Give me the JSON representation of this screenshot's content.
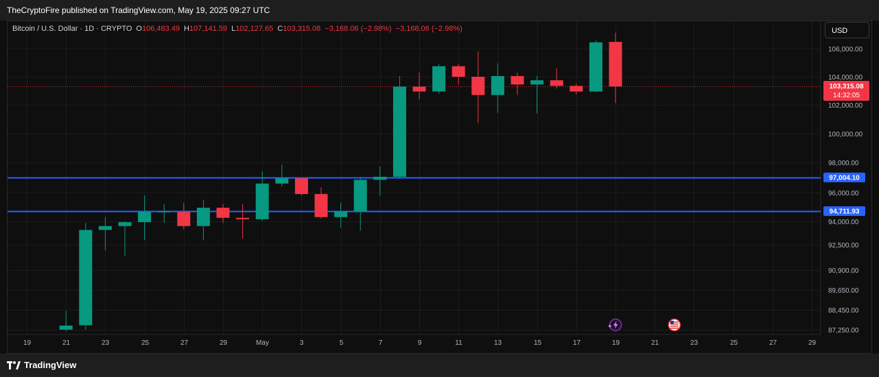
{
  "header": {
    "published": "TheCryptoFire published on TradingView.com, May 19, 2025 09:27 UTC"
  },
  "legend": {
    "symbol": "Bitcoin / U.S. Dollar · 1D · CRYPTO",
    "open_label": "O",
    "open": "106,483.49",
    "high_label": "H",
    "high": "107,141.59",
    "low_label": "L",
    "low": "102,127.65",
    "close_label": "C",
    "close": "103,315.08",
    "change": "−3,168.06 (−2.98%)",
    "change2": "−3,168.06 (−2.98%)"
  },
  "currency_button": "USD",
  "footer": {
    "brand": "TradingView"
  },
  "colors": {
    "up": "#089981",
    "down": "#f23645",
    "level_line": "#2962ff",
    "background": "#0f0f0f",
    "grid": "#1c1c1c"
  },
  "chart_data": {
    "type": "candlestick",
    "title": "Bitcoin / U.S. Dollar · 1D · CRYPTO",
    "grid": true,
    "price_axis": "right",
    "price_ticks": [
      {
        "label": "106,000.00",
        "value": 106000
      },
      {
        "label": "104,000.00",
        "value": 104000
      },
      {
        "label": "102,000.00",
        "value": 102000
      },
      {
        "label": "100,000.00",
        "value": 100000
      },
      {
        "label": "98,000.00",
        "value": 98000
      },
      {
        "label": "96,000.00",
        "value": 96000
      },
      {
        "label": "94,000.00",
        "value": 94000
      },
      {
        "label": "92,500.00",
        "value": 92500
      },
      {
        "label": "90,900.00",
        "value": 90900
      },
      {
        "label": "89,650.00",
        "value": 89650
      },
      {
        "label": "88,450.00",
        "value": 88450
      },
      {
        "label": "87,250.00",
        "value": 87250
      }
    ],
    "date_ticks": [
      {
        "label": "19",
        "date": "2025-04-19"
      },
      {
        "label": "21",
        "date": "2025-04-21"
      },
      {
        "label": "23",
        "date": "2025-04-23"
      },
      {
        "label": "25",
        "date": "2025-04-25"
      },
      {
        "label": "27",
        "date": "2025-04-27"
      },
      {
        "label": "29",
        "date": "2025-04-29"
      },
      {
        "label": "May",
        "date": "2025-05-01"
      },
      {
        "label": "3",
        "date": "2025-05-03"
      },
      {
        "label": "5",
        "date": "2025-05-05"
      },
      {
        "label": "7",
        "date": "2025-05-07"
      },
      {
        "label": "9",
        "date": "2025-05-09"
      },
      {
        "label": "11",
        "date": "2025-05-11"
      },
      {
        "label": "13",
        "date": "2025-05-13"
      },
      {
        "label": "15",
        "date": "2025-05-15"
      },
      {
        "label": "17",
        "date": "2025-05-17"
      },
      {
        "label": "19",
        "date": "2025-05-19"
      },
      {
        "label": "21",
        "date": "2025-05-21"
      },
      {
        "label": "23",
        "date": "2025-05-23"
      },
      {
        "label": "25",
        "date": "2025-05-25"
      },
      {
        "label": "27",
        "date": "2025-05-27"
      },
      {
        "label": "29",
        "date": "2025-05-29"
      }
    ],
    "candles": [
      {
        "date": "2025-04-21",
        "open": 87250,
        "high": 88400,
        "low": 87150,
        "close": 87500
      },
      {
        "date": "2025-04-22",
        "open": 87520,
        "high": 93900,
        "low": 87250,
        "close": 93450
      },
      {
        "date": "2025-04-23",
        "open": 93450,
        "high": 94300,
        "low": 92150,
        "close": 93700
      },
      {
        "date": "2025-04-24",
        "open": 93700,
        "high": 94000,
        "low": 91800,
        "close": 93950
      },
      {
        "date": "2025-04-25",
        "open": 93950,
        "high": 95800,
        "low": 92800,
        "close": 94650
      },
      {
        "date": "2025-04-26",
        "open": 94650,
        "high": 95200,
        "low": 93900,
        "close": 94700
      },
      {
        "date": "2025-04-27",
        "open": 94650,
        "high": 95300,
        "low": 93500,
        "close": 93700
      },
      {
        "date": "2025-04-28",
        "open": 93700,
        "high": 95500,
        "low": 92800,
        "close": 94950
      },
      {
        "date": "2025-04-29",
        "open": 94950,
        "high": 95200,
        "low": 93900,
        "close": 94250
      },
      {
        "date": "2025-04-30",
        "open": 94250,
        "high": 95200,
        "low": 92900,
        "close": 94150
      },
      {
        "date": "2025-05-01",
        "open": 94150,
        "high": 97400,
        "low": 94050,
        "close": 96600
      },
      {
        "date": "2025-05-02",
        "open": 96600,
        "high": 97850,
        "low": 96400,
        "close": 96950
      },
      {
        "date": "2025-05-03",
        "open": 96950,
        "high": 96950,
        "low": 95800,
        "close": 95900
      },
      {
        "date": "2025-05-04",
        "open": 95900,
        "high": 96350,
        "low": 94200,
        "close": 94300
      },
      {
        "date": "2025-05-05",
        "open": 94300,
        "high": 95300,
        "low": 93600,
        "close": 94700
      },
      {
        "date": "2025-05-06",
        "open": 94700,
        "high": 97050,
        "low": 93400,
        "close": 96850
      },
      {
        "date": "2025-05-07",
        "open": 96850,
        "high": 97750,
        "low": 95800,
        "close": 97050
      },
      {
        "date": "2025-05-08",
        "open": 97050,
        "high": 104050,
        "low": 96950,
        "close": 103300
      },
      {
        "date": "2025-05-09",
        "open": 103300,
        "high": 104300,
        "low": 102400,
        "close": 102950
      },
      {
        "date": "2025-05-10",
        "open": 102950,
        "high": 104900,
        "low": 102800,
        "close": 104750
      },
      {
        "date": "2025-05-11",
        "open": 104750,
        "high": 104900,
        "low": 103450,
        "close": 104000
      },
      {
        "date": "2025-05-12",
        "open": 104000,
        "high": 105800,
        "low": 100750,
        "close": 102700
      },
      {
        "date": "2025-05-13",
        "open": 102700,
        "high": 104950,
        "low": 101450,
        "close": 104050
      },
      {
        "date": "2025-05-14",
        "open": 104050,
        "high": 104300,
        "low": 102700,
        "close": 103450
      },
      {
        "date": "2025-05-15",
        "open": 103450,
        "high": 104050,
        "low": 101400,
        "close": 103750
      },
      {
        "date": "2025-05-16",
        "open": 103750,
        "high": 104600,
        "low": 103150,
        "close": 103350
      },
      {
        "date": "2025-05-17",
        "open": 103350,
        "high": 103500,
        "low": 102750,
        "close": 102950
      },
      {
        "date": "2025-05-18",
        "open": 102950,
        "high": 106600,
        "low": 102900,
        "close": 106450
      },
      {
        "date": "2025-05-19",
        "open": 106483.49,
        "high": 107141.59,
        "low": 102127.65,
        "close": 103315.08
      }
    ],
    "levels": [
      {
        "price": 97004.1,
        "label": "97,004.10"
      },
      {
        "price": 94711.93,
        "label": "94,711.93"
      }
    ],
    "last_price": {
      "price": 103315.08,
      "label": "103,315.08",
      "countdown": "14:32:05"
    },
    "event_markers": [
      {
        "date": "2025-05-19",
        "icon": "lightning-icon"
      },
      {
        "date": "2025-05-22",
        "icon": "us-flag-icon"
      }
    ]
  }
}
